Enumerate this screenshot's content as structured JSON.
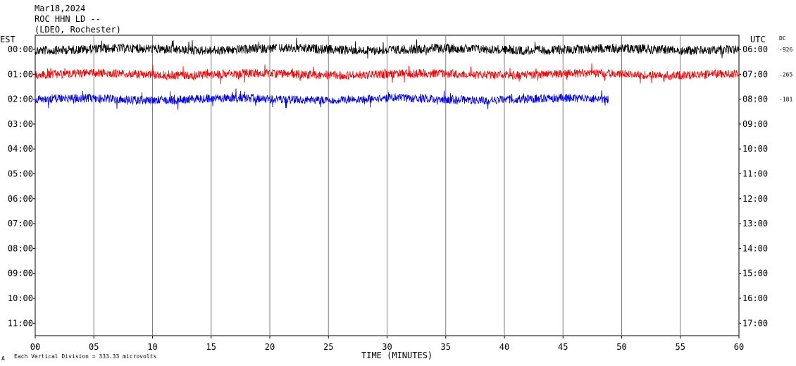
{
  "header": {
    "date": "Mar18,2024",
    "station": "ROC HHN LD --",
    "network": "(LDEO, Rochester)"
  },
  "left_axis_label": "EST",
  "right_axis_label": "UTC",
  "dc_label": "DC",
  "footer": {
    "scale_note": "Each Vertical Division =  333.33 microvolts",
    "corner_mark": "A"
  },
  "chart_data": {
    "type": "line",
    "title": "",
    "xlabel": "TIME (MINUTES)",
    "ylabel": "",
    "xlim": [
      0,
      60
    ],
    "x_ticks": [
      "00",
      "05",
      "10",
      "15",
      "20",
      "25",
      "30",
      "35",
      "40",
      "45",
      "50",
      "55",
      "60"
    ],
    "left_ticks": [
      "00:00",
      "01:00",
      "02:00",
      "03:00",
      "04:00",
      "05:00",
      "06:00",
      "07:00",
      "08:00",
      "09:00",
      "10:00",
      "11:00"
    ],
    "right_ticks": [
      "06:00",
      "07:00",
      "08:00",
      "09:00",
      "10:00",
      "11:00",
      "12:00",
      "13:00",
      "14:00",
      "15:00",
      "16:00",
      "17:00"
    ],
    "traces": [
      {
        "row": 0,
        "color": "#000000",
        "end_minute": 60,
        "dc_offset": "-926",
        "gaps": [
          [
            20.6,
            20.8
          ]
        ],
        "amplitude": 6.5
      },
      {
        "row": 1,
        "color": "#ff0000",
        "end_minute": 60,
        "dc_offset": "-265",
        "gaps": [],
        "amplitude": 6
      },
      {
        "row": 2,
        "color": "#0000ff",
        "end_minute": 48.9,
        "dc_offset": "-181",
        "gaps": [],
        "amplitude": 6
      }
    ],
    "grid": {
      "vertical_every_minutes": 5
    }
  }
}
